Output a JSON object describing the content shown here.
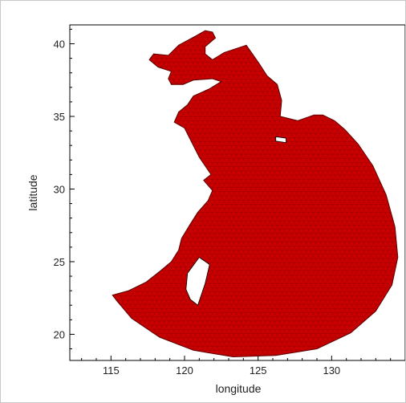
{
  "chart_data": {
    "type": "map",
    "description_free": true,
    "xlabel": "longitude",
    "ylabel": "latitude",
    "xlim": [
      112.2,
      135
    ],
    "ylim": [
      18.2,
      41.3
    ],
    "x_ticks": [
      115,
      120,
      125,
      130
    ],
    "y_ticks": [
      20,
      25,
      30,
      35,
      40
    ],
    "x_tick_labels": [
      "115",
      "120",
      "125",
      "130"
    ],
    "y_tick_labels": [
      "20",
      "25",
      "30",
      "35",
      "40"
    ],
    "mesh_color": "#cc0000",
    "mesh_edge_color": "#5a0000",
    "domain_outline_lonlat": [
      [
        115.1,
        22.7
      ],
      [
        116.2,
        23.0
      ],
      [
        117.4,
        23.6
      ],
      [
        118.4,
        24.4
      ],
      [
        119.1,
        25.0
      ],
      [
        119.6,
        25.8
      ],
      [
        119.8,
        26.6
      ],
      [
        120.4,
        27.6
      ],
      [
        120.9,
        28.4
      ],
      [
        121.6,
        29.2
      ],
      [
        121.9,
        29.9
      ],
      [
        121.3,
        30.6
      ],
      [
        121.8,
        31.0
      ],
      [
        121.0,
        32.2
      ],
      [
        120.4,
        33.4
      ],
      [
        120.0,
        34.2
      ],
      [
        119.3,
        34.6
      ],
      [
        119.6,
        35.3
      ],
      [
        120.2,
        35.8
      ],
      [
        120.6,
        36.4
      ],
      [
        121.7,
        36.9
      ],
      [
        122.5,
        37.4
      ],
      [
        121.9,
        37.6
      ],
      [
        120.6,
        37.5
      ],
      [
        119.9,
        37.2
      ],
      [
        119.1,
        37.2
      ],
      [
        118.9,
        37.6
      ],
      [
        119.1,
        38.1
      ],
      [
        118.2,
        38.4
      ],
      [
        117.6,
        38.9
      ],
      [
        117.9,
        39.3
      ],
      [
        118.9,
        39.2
      ],
      [
        119.6,
        39.9
      ],
      [
        120.7,
        40.5
      ],
      [
        121.4,
        40.9
      ],
      [
        121.9,
        40.8
      ],
      [
        122.1,
        40.4
      ],
      [
        121.4,
        39.8
      ],
      [
        121.4,
        39.3
      ],
      [
        121.9,
        38.9
      ],
      [
        122.7,
        39.4
      ],
      [
        124.2,
        39.9
      ],
      [
        125.1,
        38.6
      ],
      [
        125.6,
        37.8
      ],
      [
        126.3,
        37.2
      ],
      [
        126.6,
        36.1
      ],
      [
        126.5,
        35.0
      ],
      [
        127.7,
        34.7
      ],
      [
        128.8,
        35.1
      ],
      [
        129.4,
        35.1
      ],
      [
        130.2,
        34.7
      ],
      [
        130.9,
        34.1
      ],
      [
        131.8,
        33.1
      ],
      [
        132.8,
        31.6
      ],
      [
        133.7,
        29.6
      ],
      [
        134.3,
        27.4
      ],
      [
        134.5,
        25.3
      ],
      [
        134.1,
        23.4
      ],
      [
        133.0,
        21.6
      ],
      [
        131.3,
        20.1
      ],
      [
        129.0,
        19.0
      ],
      [
        126.2,
        18.55
      ],
      [
        123.3,
        18.45
      ],
      [
        120.6,
        18.9
      ],
      [
        118.3,
        19.8
      ],
      [
        116.4,
        21.1
      ],
      [
        115.4,
        22.3
      ]
    ],
    "islands_lonlat": [
      [
        [
          121.0,
          25.3
        ],
        [
          121.7,
          24.8
        ],
        [
          121.4,
          23.5
        ],
        [
          120.9,
          22.0
        ],
        [
          120.4,
          22.4
        ],
        [
          120.1,
          23.1
        ],
        [
          120.2,
          24.2
        ]
      ],
      [
        [
          126.2,
          33.6
        ],
        [
          126.9,
          33.5
        ],
        [
          126.9,
          33.2
        ],
        [
          126.2,
          33.3
        ]
      ]
    ]
  }
}
